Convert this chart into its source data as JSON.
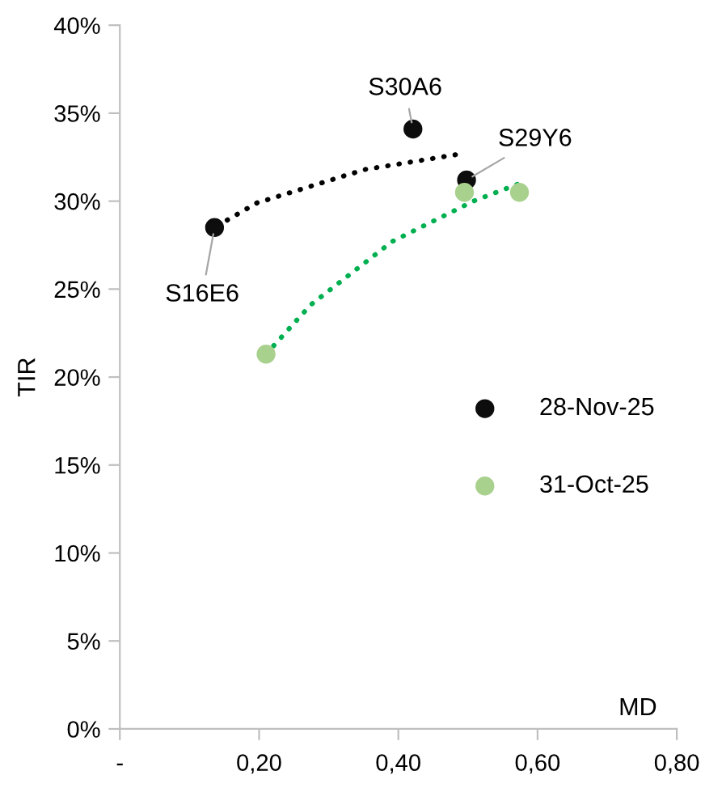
{
  "chart_data": {
    "type": "scatter",
    "xlabel": "MD",
    "ylabel": "TIR",
    "xlim": [
      0,
      0.8
    ],
    "xticks": [
      {
        "value": 0,
        "label": "-"
      },
      {
        "value": 0.2,
        "label": "0,20"
      },
      {
        "value": 0.4,
        "label": "0,40"
      },
      {
        "value": 0.6,
        "label": "0,60"
      },
      {
        "value": 0.8,
        "label": "0,80"
      }
    ],
    "ylim": [
      0,
      40
    ],
    "yticks": [
      {
        "value": 0,
        "label": "0%"
      },
      {
        "value": 5,
        "label": "5%"
      },
      {
        "value": 10,
        "label": "10%"
      },
      {
        "value": 15,
        "label": "15%"
      },
      {
        "value": 20,
        "label": "20%"
      },
      {
        "value": 25,
        "label": "25%"
      },
      {
        "value": 30,
        "label": "30%"
      },
      {
        "value": 35,
        "label": "35%"
      },
      {
        "value": 40,
        "label": "40%"
      }
    ],
    "grid": false,
    "legend": "right",
    "series": [
      {
        "type": "line",
        "marker": "none",
        "line_style": "dotted",
        "color": "#000000",
        "x": [
          0.14,
          0.197,
          0.352,
          0.492
        ],
        "values": [
          28.6,
          29.9,
          31.8,
          32.7
        ]
      },
      {
        "type": "line",
        "marker": "none",
        "line_style": "dotted",
        "color": "#00b050",
        "x": [
          0.21,
          0.274,
          0.391,
          0.508,
          0.574
        ],
        "values": [
          21.3,
          24.1,
          27.7,
          30.0,
          31.0
        ]
      },
      {
        "marker": "circle",
        "name": "28-Nov-25",
        "color": "#0d0d0d",
        "x": [
          0.136,
          0.421,
          0.498
        ],
        "values": [
          28.5,
          34.1,
          31.2
        ]
      },
      {
        "marker": "circle",
        "name": "31-Oct-25",
        "color": "#a9d18e",
        "x": [
          0.21,
          0.495,
          0.574
        ],
        "values": [
          21.3,
          30.5,
          30.5
        ]
      }
    ],
    "annotations": [
      {
        "text": "S16E6",
        "x": 0.136,
        "y": 28.5
      },
      {
        "text": "S30A6",
        "x": 0.421,
        "y": 34.1
      },
      {
        "text": "S29Y6",
        "x": 0.498,
        "y": 31.2
      }
    ]
  }
}
